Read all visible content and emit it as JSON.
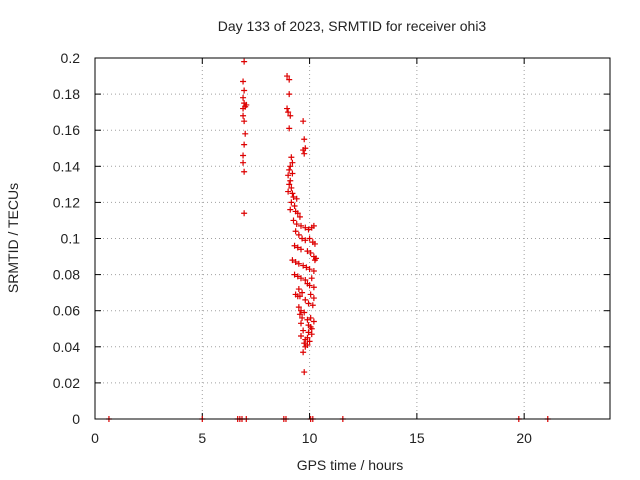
{
  "chart_data": {
    "type": "scatter",
    "title": "Day 133 of 2023, SRMTID for receiver ohi3",
    "xlabel": "GPS time / hours",
    "ylabel": "SRMTID / TECUs",
    "xlim": [
      0,
      24
    ],
    "ylim": [
      0,
      0.2
    ],
    "x_ticks": [
      0,
      5,
      10,
      15,
      20
    ],
    "x_tick_labels": [
      "0",
      "5",
      "10",
      "15",
      "20"
    ],
    "y_ticks": [
      0,
      0.02,
      0.04,
      0.06,
      0.08,
      0.1,
      0.12,
      0.14,
      0.16,
      0.18,
      0.2
    ],
    "y_tick_labels": [
      "0",
      "0.02",
      "0.04",
      "0.06",
      "0.08",
      "0.1",
      "0.12",
      "0.14",
      "0.16",
      "0.18",
      "0.2"
    ],
    "grid": true,
    "marker": "+",
    "color": "#dd0000",
    "series": [
      {
        "name": "SRMTID",
        "points": [
          [
            0.65,
            0
          ],
          [
            5.0,
            0
          ],
          [
            6.65,
            0
          ],
          [
            6.75,
            0
          ],
          [
            6.85,
            0
          ],
          [
            7.05,
            0
          ],
          [
            8.8,
            0
          ],
          [
            8.9,
            0
          ],
          [
            10.05,
            0
          ],
          [
            10.15,
            0
          ],
          [
            11.55,
            0
          ],
          [
            19.75,
            0
          ],
          [
            21.1,
            0
          ],
          [
            6.95,
            0.198
          ],
          [
            6.9,
            0.187
          ],
          [
            6.95,
            0.182
          ],
          [
            6.9,
            0.178
          ],
          [
            6.95,
            0.175
          ],
          [
            7.0,
            0.173
          ],
          [
            7.05,
            0.174
          ],
          [
            6.9,
            0.172
          ],
          [
            6.95,
            0.165
          ],
          [
            6.9,
            0.168
          ],
          [
            7.0,
            0.158
          ],
          [
            6.95,
            0.152
          ],
          [
            6.9,
            0.146
          ],
          [
            6.9,
            0.142
          ],
          [
            6.95,
            0.137
          ],
          [
            6.95,
            0.114
          ],
          [
            8.95,
            0.19
          ],
          [
            9.05,
            0.188
          ],
          [
            9.05,
            0.18
          ],
          [
            8.95,
            0.172
          ],
          [
            9.0,
            0.17
          ],
          [
            9.1,
            0.168
          ],
          [
            9.05,
            0.161
          ],
          [
            9.7,
            0.165
          ],
          [
            9.75,
            0.155
          ],
          [
            9.7,
            0.149
          ],
          [
            9.75,
            0.147
          ],
          [
            9.8,
            0.15
          ],
          [
            9.15,
            0.145
          ],
          [
            9.2,
            0.142
          ],
          [
            9.1,
            0.14
          ],
          [
            9.05,
            0.138
          ],
          [
            9.2,
            0.136
          ],
          [
            9.0,
            0.135
          ],
          [
            9.1,
            0.132
          ],
          [
            9.05,
            0.13
          ],
          [
            9.15,
            0.128
          ],
          [
            9.0,
            0.126
          ],
          [
            9.2,
            0.125
          ],
          [
            9.25,
            0.123
          ],
          [
            9.4,
            0.122
          ],
          [
            9.15,
            0.12
          ],
          [
            9.3,
            0.118
          ],
          [
            9.1,
            0.116
          ],
          [
            9.35,
            0.115
          ],
          [
            9.45,
            0.114
          ],
          [
            9.55,
            0.112
          ],
          [
            9.25,
            0.11
          ],
          [
            9.4,
            0.108
          ],
          [
            9.6,
            0.107
          ],
          [
            9.8,
            0.106
          ],
          [
            9.95,
            0.105
          ],
          [
            10.1,
            0.106
          ],
          [
            10.2,
            0.107
          ],
          [
            9.35,
            0.104
          ],
          [
            9.5,
            0.102
          ],
          [
            9.65,
            0.1
          ],
          [
            9.8,
            0.099
          ],
          [
            10.0,
            0.1
          ],
          [
            10.15,
            0.098
          ],
          [
            10.25,
            0.097
          ],
          [
            9.3,
            0.096
          ],
          [
            9.45,
            0.095
          ],
          [
            9.6,
            0.094
          ],
          [
            9.9,
            0.093
          ],
          [
            10.05,
            0.092
          ],
          [
            10.2,
            0.09
          ],
          [
            10.3,
            0.089
          ],
          [
            10.25,
            0.088
          ],
          [
            9.2,
            0.088
          ],
          [
            9.35,
            0.087
          ],
          [
            9.5,
            0.086
          ],
          [
            9.7,
            0.085
          ],
          [
            9.85,
            0.084
          ],
          [
            10.0,
            0.083
          ],
          [
            10.2,
            0.082
          ],
          [
            9.3,
            0.08
          ],
          [
            9.45,
            0.079
          ],
          [
            9.6,
            0.078
          ],
          [
            9.8,
            0.077
          ],
          [
            10.1,
            0.078
          ],
          [
            9.9,
            0.075
          ],
          [
            10.0,
            0.074
          ],
          [
            10.2,
            0.073
          ],
          [
            9.5,
            0.072
          ],
          [
            9.65,
            0.07
          ],
          [
            9.35,
            0.069
          ],
          [
            9.45,
            0.068
          ],
          [
            9.55,
            0.068
          ],
          [
            10.05,
            0.069
          ],
          [
            10.2,
            0.067
          ],
          [
            9.8,
            0.066
          ],
          [
            9.95,
            0.064
          ],
          [
            10.15,
            0.063
          ],
          [
            9.5,
            0.062
          ],
          [
            9.6,
            0.06
          ],
          [
            9.75,
            0.059
          ],
          [
            9.55,
            0.058
          ],
          [
            9.65,
            0.056
          ],
          [
            9.9,
            0.055
          ],
          [
            10.05,
            0.056
          ],
          [
            10.2,
            0.054
          ],
          [
            9.6,
            0.053
          ],
          [
            9.95,
            0.052
          ],
          [
            10.05,
            0.051
          ],
          [
            10.1,
            0.05
          ],
          [
            9.7,
            0.049
          ],
          [
            9.95,
            0.048
          ],
          [
            10.1,
            0.047
          ],
          [
            9.6,
            0.046
          ],
          [
            9.9,
            0.045
          ],
          [
            9.8,
            0.044
          ],
          [
            10.0,
            0.043
          ],
          [
            9.75,
            0.042
          ],
          [
            9.9,
            0.041
          ],
          [
            9.8,
            0.04
          ],
          [
            9.7,
            0.037
          ],
          [
            9.75,
            0.026
          ]
        ]
      }
    ]
  }
}
